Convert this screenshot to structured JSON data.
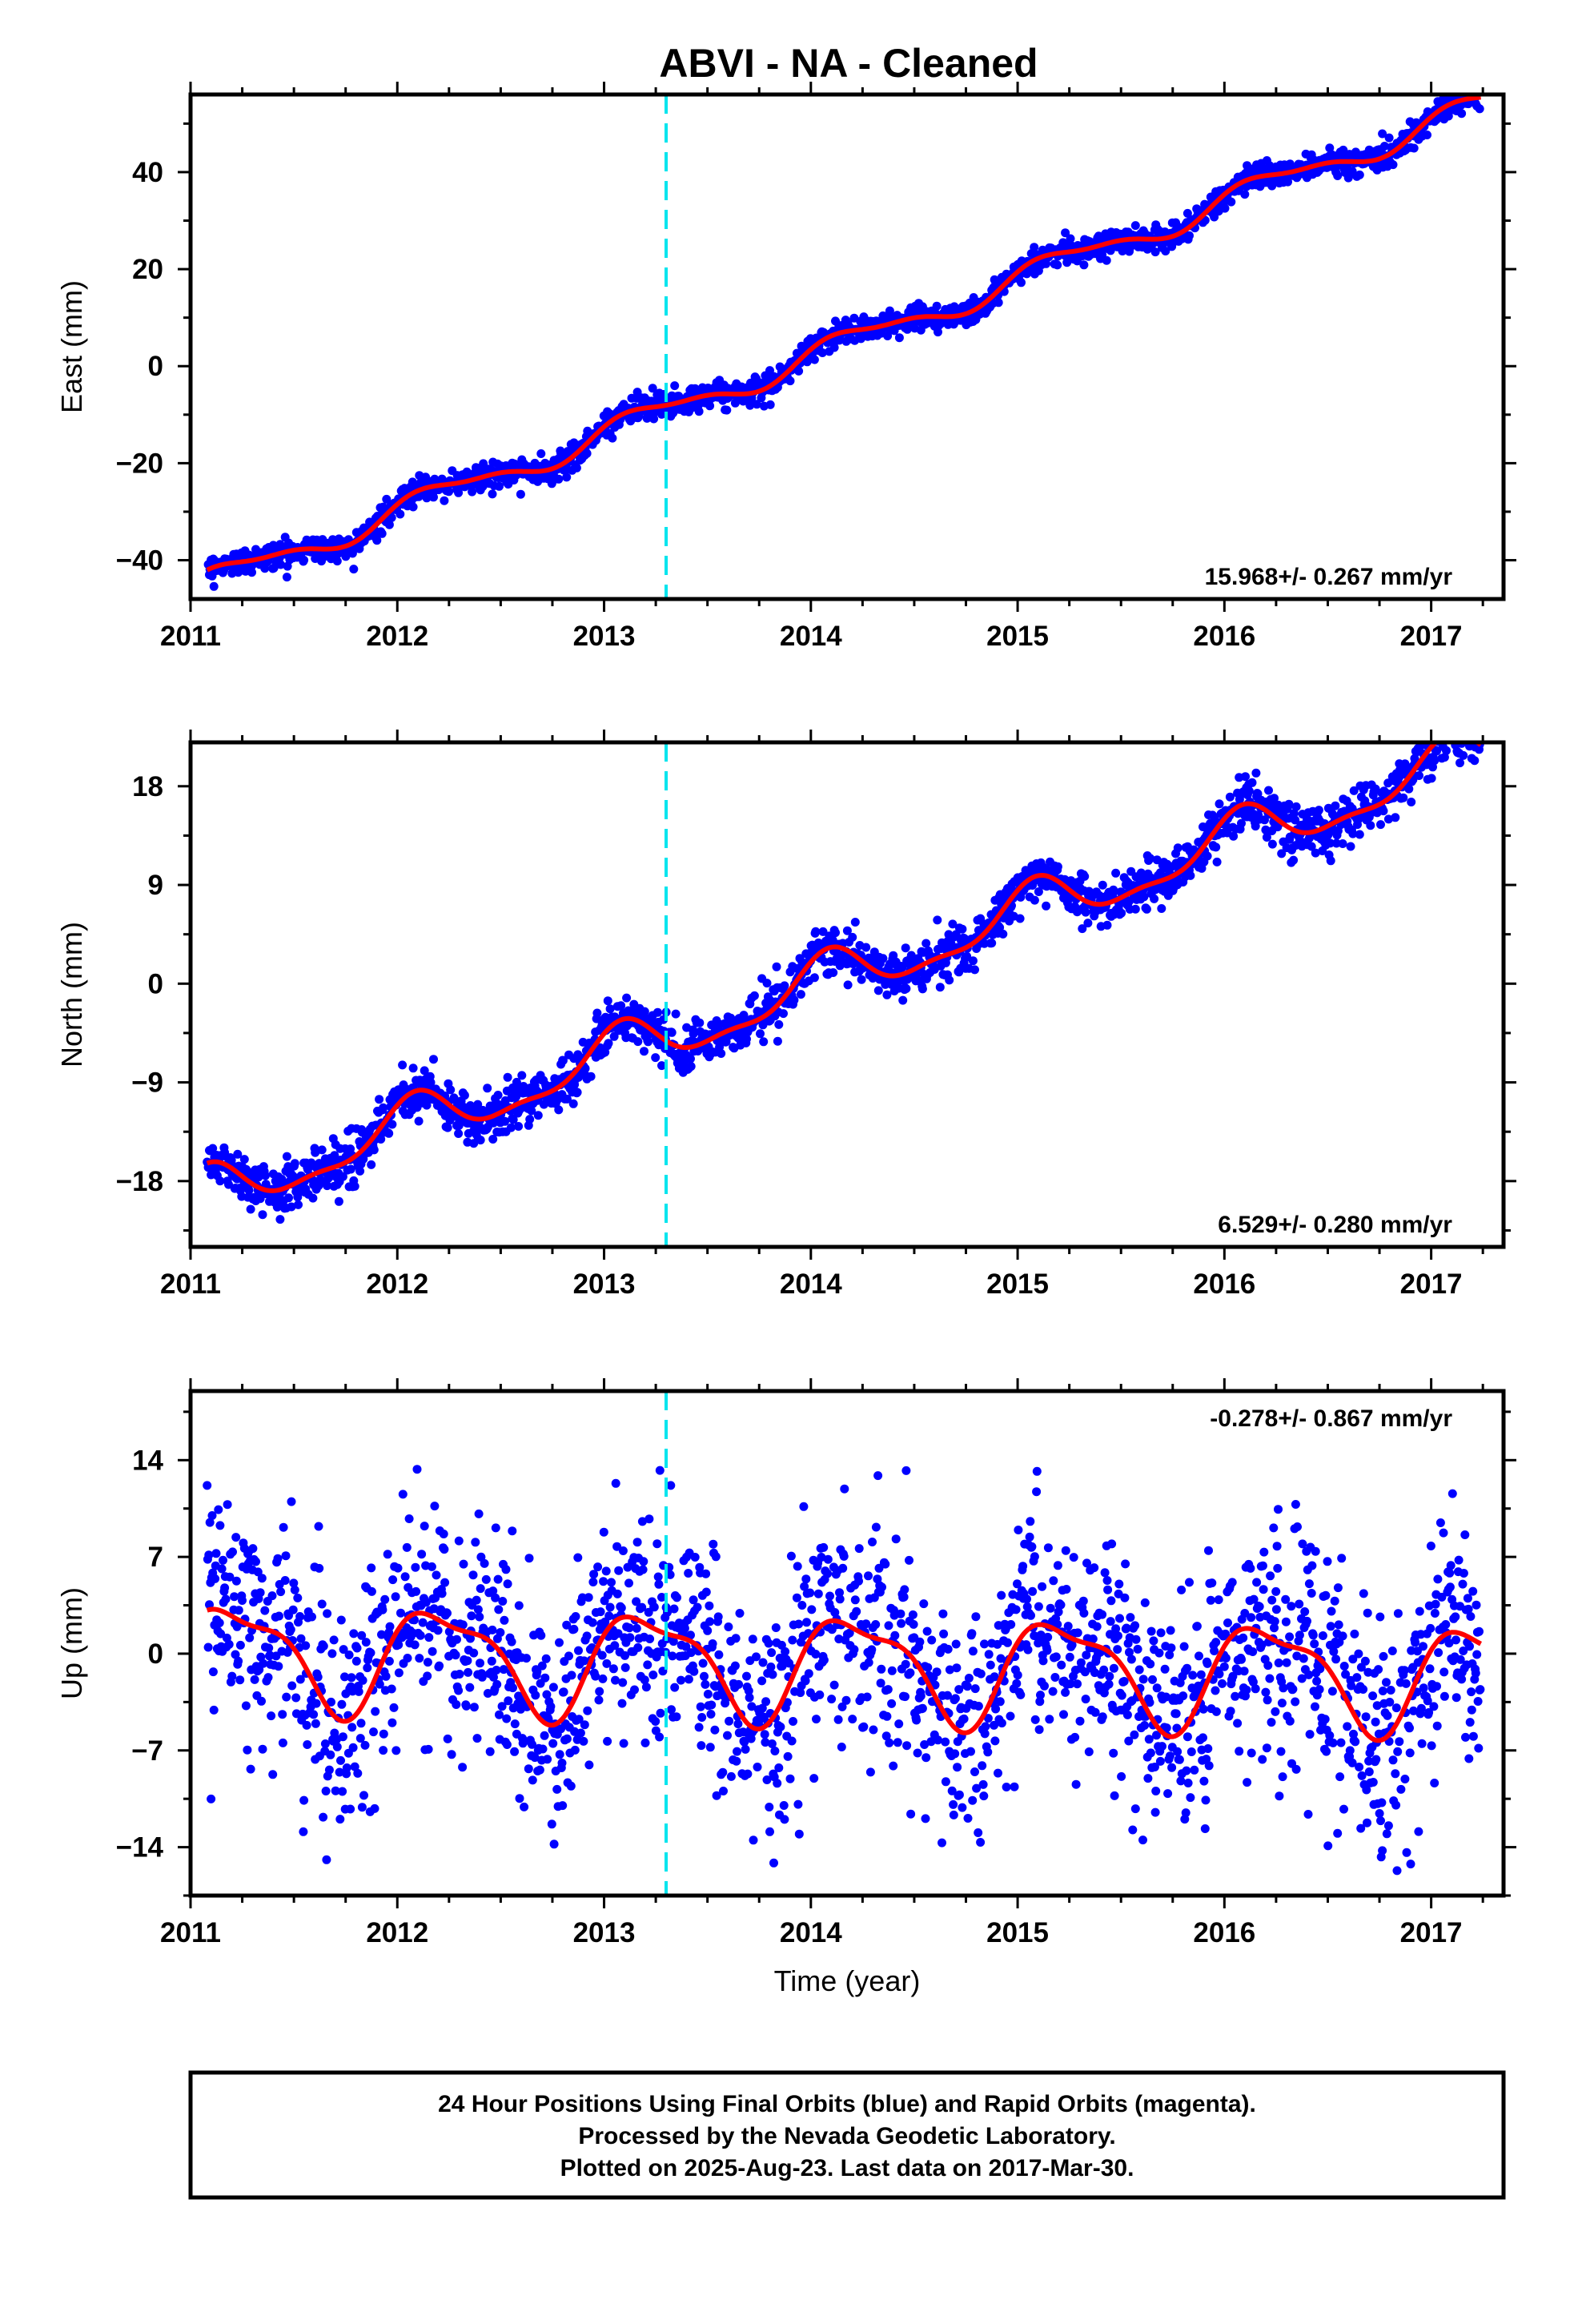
{
  "title": "ABVI  - NA - Cleaned",
  "xlabel": "Time (year)",
  "colors": {
    "data": "#0000ff",
    "model": "#ff0000",
    "event": "#00e5ee",
    "frame": "#000000"
  },
  "footer": {
    "line1": "24 Hour Positions Using Final Orbits (blue) and Rapid Orbits (magenta).",
    "line2": "Processed by the Nevada Geodetic Laboratory.",
    "line3": "Plotted on 2025-Aug-23. Last data on 2017-Mar-30."
  },
  "chart_data": [
    {
      "type": "scatter",
      "ylabel": "East (mm)",
      "rate_label": "15.968+/- 0.267 mm/yr",
      "xlim": [
        2011.0,
        2017.35
      ],
      "ylim": [
        -48,
        56
      ],
      "xticks": [
        2011,
        2012,
        2013,
        2014,
        2015,
        2016,
        2017
      ],
      "yticks": [
        -40,
        -20,
        0,
        20,
        40
      ],
      "event_x": 2013.3,
      "x_range": [
        2011.08,
        2017.24
      ],
      "trend": {
        "t0": 2011.09,
        "y0": -44.5,
        "rate": 15.968
      },
      "seasonal": [
        {
          "amp": 2.5,
          "period": 1.0,
          "phase": 0.3
        },
        {
          "amp": 0.9,
          "period": 0.5,
          "phase": 1.0
        }
      ],
      "noise_sd": 1.3,
      "series": [
        {
          "values": []
        }
      ]
    },
    {
      "type": "scatter",
      "ylabel": "North (mm)",
      "rate_label": "6.529+/- 0.280 mm/yr",
      "xlim": [
        2011.0,
        2017.35
      ],
      "ylim": [
        -24,
        22
      ],
      "xticks": [
        2011,
        2012,
        2013,
        2014,
        2015,
        2016,
        2017
      ],
      "yticks": [
        -18,
        -9,
        0,
        9,
        18
      ],
      "event_x": 2013.3,
      "x_range": [
        2011.08,
        2017.24
      ],
      "trend": {
        "t0": 2011.09,
        "y0": -19.3,
        "rate": 6.529
      },
      "seasonal": [
        {
          "amp": 2.2,
          "period": 1.0,
          "phase": 1.1
        },
        {
          "amp": 0.8,
          "period": 0.5,
          "phase": 0.4
        }
      ],
      "noise_sd": 1.1,
      "series": [
        {
          "values": []
        }
      ]
    },
    {
      "type": "scatter",
      "ylabel": "Up (mm)",
      "rate_label": "-0.278+/- 0.867 mm/yr",
      "xlim": [
        2011.0,
        2017.35
      ],
      "ylim": [
        -17.5,
        19
      ],
      "xticks": [
        2011,
        2012,
        2013,
        2014,
        2015,
        2016,
        2017
      ],
      "yticks": [
        -14,
        -7,
        0,
        7,
        14
      ],
      "event_x": 2013.3,
      "x_range": [
        2011.08,
        2017.24
      ],
      "trend": {
        "t0": 2011.09,
        "y0": 0.0,
        "rate": -0.278
      },
      "seasonal": [
        {
          "amp": 3.6,
          "period": 1.0,
          "phase": 0.2
        },
        {
          "amp": 1.2,
          "period": 0.5,
          "phase": 1.4
        }
      ],
      "noise_sd": 4.0,
      "series": [
        {
          "values": []
        }
      ]
    }
  ]
}
